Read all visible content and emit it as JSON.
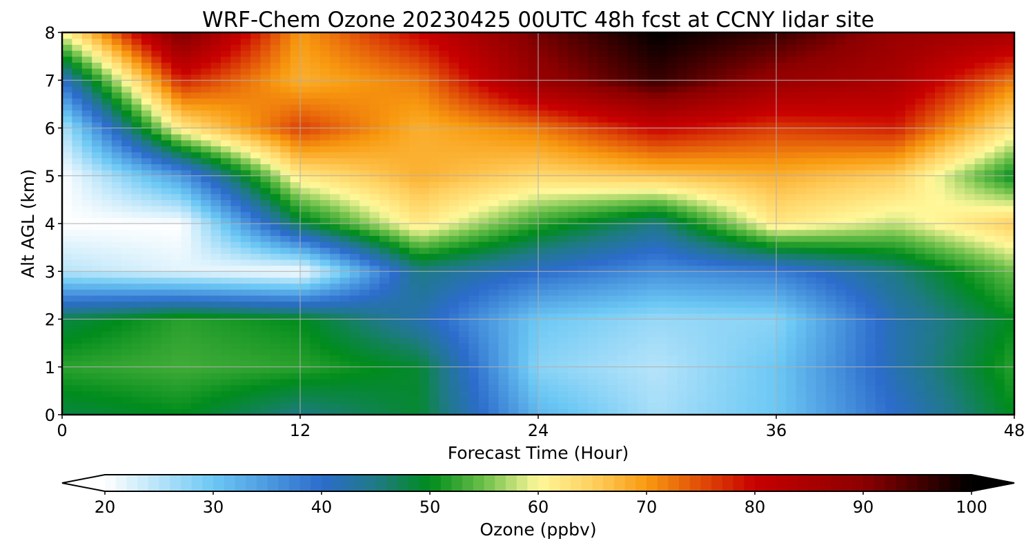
{
  "chart_data": {
    "type": "heatmap",
    "title": "WRF-Chem Ozone  20230425 00UTC 48h fcst at CCNY lidar site",
    "xlabel": "Forecast Time (Hour)",
    "ylabel": "Alt AGL (km)",
    "xlim": [
      0,
      48
    ],
    "ylim": [
      0,
      8
    ],
    "x_ticks": [
      "0",
      "12",
      "24",
      "36",
      "48"
    ],
    "x_tick_values": [
      0,
      12,
      24,
      36,
      48
    ],
    "y_ticks": [
      "0",
      "1",
      "2",
      "3",
      "4",
      "5",
      "6",
      "7",
      "8"
    ],
    "y_tick_values": [
      0,
      1,
      2,
      3,
      4,
      5,
      6,
      7,
      8
    ],
    "grid": true,
    "x_hours": [
      0,
      6,
      12,
      18,
      24,
      30,
      36,
      42,
      48
    ],
    "y_km": [
      0,
      1,
      2,
      3,
      4,
      5,
      6,
      7,
      8
    ],
    "ozone_ppbv": [
      [
        48,
        50,
        45,
        49,
        32,
        26,
        30,
        40,
        50
      ],
      [
        52,
        53,
        52,
        49,
        28,
        25,
        30,
        42,
        52
      ],
      [
        48,
        52,
        50,
        42,
        30,
        27,
        28,
        42,
        50
      ],
      [
        25,
        22,
        20,
        45,
        40,
        36,
        38,
        45,
        55
      ],
      [
        20,
        20,
        48,
        62,
        52,
        45,
        62,
        58,
        65
      ],
      [
        20,
        35,
        62,
        68,
        64,
        66,
        68,
        65,
        50
      ],
      [
        25,
        62,
        76,
        68,
        72,
        80,
        76,
        78,
        62
      ],
      [
        40,
        78,
        68,
        72,
        88,
        96,
        88,
        85,
        72
      ],
      [
        60,
        92,
        70,
        80,
        92,
        100,
        96,
        88,
        86
      ]
    ],
    "colorbar": {
      "label": "Ozone  (ppbv)",
      "min": 20,
      "max": 100,
      "ticks": [
        "20",
        "30",
        "40",
        "50",
        "60",
        "70",
        "80",
        "90",
        "100"
      ],
      "tick_values": [
        20,
        30,
        40,
        50,
        60,
        70,
        80,
        90,
        100
      ],
      "extend": "both",
      "color_stops": [
        {
          "v": 20,
          "c": "#ffffff"
        },
        {
          "v": 30,
          "c": "#6cc8f4"
        },
        {
          "v": 40,
          "c": "#2c6ccc"
        },
        {
          "v": 45,
          "c": "#1f7a86"
        },
        {
          "v": 50,
          "c": "#008c1c"
        },
        {
          "v": 55,
          "c": "#6cc04a"
        },
        {
          "v": 60,
          "c": "#fff89a"
        },
        {
          "v": 65,
          "c": "#ffd060"
        },
        {
          "v": 70,
          "c": "#f89a10"
        },
        {
          "v": 80,
          "c": "#c80000"
        },
        {
          "v": 90,
          "c": "#8c0000"
        },
        {
          "v": 100,
          "c": "#000000"
        }
      ]
    }
  }
}
